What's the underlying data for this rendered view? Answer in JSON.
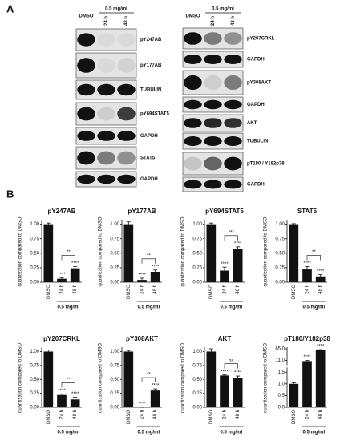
{
  "panel_a": {
    "label": "A",
    "left": {
      "dmso": "DMSO",
      "dose": "0.5 mg/ml",
      "times": [
        "24 h",
        "48 h"
      ],
      "blots": [
        "pY247AB",
        "pY177AB",
        "TUBULIN",
        "pY694STAT5",
        "GAPDH",
        "STAT5",
        "GAPDH"
      ]
    },
    "right": {
      "dmso": "DMSO",
      "dose": "0.5 mg/ml",
      "times": [
        "24 h",
        "48 h"
      ],
      "blots": [
        "pY207CRKL",
        "GAPDH",
        "pY308AKT",
        "GAPDH",
        "AKT",
        "TUBULIN",
        "pT180 / Y182p38",
        "GAPDH"
      ]
    }
  },
  "panel_b": {
    "label": "B"
  },
  "chart_data": [
    {
      "type": "bar",
      "title": "pY247AB",
      "y_label": "quantization compared to DMSO",
      "categories": [
        "DMSO",
        "24 h",
        "48 h"
      ],
      "values": [
        1.0,
        0.06,
        0.24
      ],
      "errors": [
        0.02,
        0.02,
        0.03
      ],
      "color": "#111111",
      "ylim": [
        0,
        1.05
      ],
      "yticks": [
        {
          "value": 0,
          "label": "0.00"
        },
        0.25,
        {
          "value": 0.5,
          "label": "0.50"
        },
        0.75,
        {
          "value": 1,
          "label": "1.00"
        }
      ],
      "annotations": [
        null,
        "****",
        "****"
      ],
      "bracket": "**",
      "group_label": "0.5 mg/ml"
    },
    {
      "type": "bar",
      "title": "pY177AB",
      "y_label": "quantization compared to DMSO",
      "categories": [
        "DMSO",
        "24 h",
        "48 h"
      ],
      "values": [
        1.0,
        0.04,
        0.18
      ],
      "errors": [
        0.04,
        0.03,
        0.03
      ],
      "color": "#111111",
      "ylim": [
        0,
        1.05
      ],
      "yticks": [
        {
          "value": 0,
          "label": "0.00"
        },
        0.25,
        {
          "value": 0.5,
          "label": "0.50"
        },
        0.75,
        {
          "value": 1,
          "label": "1.00"
        }
      ],
      "annotations": [
        null,
        "****",
        "****"
      ],
      "bracket": "**",
      "group_label": "0.5 mg/ml"
    },
    {
      "type": "bar",
      "title": "pY694STAT5",
      "y_label": "quantization compared to DMSO",
      "categories": [
        "DMSO",
        "24 h",
        "48 h"
      ],
      "values": [
        1.0,
        0.2,
        0.57
      ],
      "errors": [
        0.02,
        0.06,
        0.04
      ],
      "color": "#111111",
      "ylim": [
        0,
        1.05
      ],
      "yticks": [
        {
          "value": 0,
          "label": "0.00"
        },
        0.25,
        {
          "value": 0.5,
          "label": "0.50"
        },
        0.75,
        {
          "value": 1,
          "label": "1.00"
        }
      ],
      "annotations": [
        null,
        "****",
        "****"
      ],
      "bracket": "***",
      "group_label": "0.5 mg/ml"
    },
    {
      "type": "bar",
      "title": "STAT5",
      "y_label": "quantization compared to DMSO",
      "categories": [
        "DMSO",
        "24 h",
        "48 h"
      ],
      "values": [
        1.0,
        0.22,
        0.1
      ],
      "errors": [
        0.01,
        0.05,
        0.03
      ],
      "color": "#111111",
      "ylim": [
        0,
        1.05
      ],
      "yticks": [
        {
          "value": 0,
          "label": "0.00"
        },
        0.25,
        {
          "value": 0.5,
          "label": "0.50"
        },
        0.75,
        {
          "value": 1,
          "label": "1.00"
        }
      ],
      "annotations": [
        null,
        "****",
        "****"
      ],
      "bracket": "**",
      "group_label": "0.5 mg/ml"
    },
    {
      "type": "bar",
      "title": "pY207CRKL",
      "y_label": "quantization compared to DMSO",
      "categories": [
        "DMSO",
        "24 h",
        "48 h"
      ],
      "values": [
        1.0,
        0.22,
        0.14
      ],
      "errors": [
        0.03,
        0.02,
        0.04
      ],
      "color": "#111111",
      "ylim": [
        0,
        1.05
      ],
      "yticks": [
        {
          "value": 0,
          "label": "0.00"
        },
        0.25,
        {
          "value": 0.5,
          "label": "0.50"
        },
        0.75,
        {
          "value": 1,
          "label": "1.00"
        }
      ],
      "annotations": [
        null,
        "****",
        "****"
      ],
      "bracket": "**",
      "group_label": "0.5 mg/ml"
    },
    {
      "type": "bar",
      "title": "pY308AKT",
      "y_label": "quantization compared to DMSO",
      "categories": [
        "DMSO",
        "24 h",
        "48 h"
      ],
      "values": [
        1.0,
        0.0,
        0.3
      ],
      "errors": [
        0.02,
        0.0,
        0.03
      ],
      "color": "#111111",
      "ylim": [
        0,
        1.05
      ],
      "yticks": [
        {
          "value": 0,
          "label": "0.00"
        },
        0.25,
        {
          "value": 0.5,
          "label": "0.50"
        },
        0.75,
        {
          "value": 1,
          "label": "1.00"
        }
      ],
      "annotations": [
        null,
        "****",
        "****"
      ],
      "bracket": "**",
      "group_label": "0.5 mg/ml"
    },
    {
      "type": "bar",
      "title": "AKT",
      "y_label": "quantization compared to DMSO",
      "categories": [
        "DMSO",
        "24 h",
        "48 h"
      ],
      "values": [
        1.0,
        0.57,
        0.52
      ],
      "errors": [
        0.05,
        0.01,
        0.04
      ],
      "color": "#111111",
      "ylim": [
        0,
        1.05
      ],
      "yticks": [
        {
          "value": 0,
          "label": "0.00"
        },
        0.25,
        {
          "value": 0.5,
          "label": "0.50"
        },
        0.75,
        {
          "value": 1,
          "label": "1.00"
        }
      ],
      "annotations": [
        null,
        "****",
        "****"
      ],
      "bracket": "ns",
      "group_label": "0.5 mg/ml"
    },
    {
      "type": "bar",
      "title": "pT180/Y182p38",
      "y_label": "quantization compared to DMSO",
      "categories": [
        "DMSO",
        "24 h",
        "48 h"
      ],
      "values": [
        1.0,
        10.5,
        58
      ],
      "errors": [
        0.05,
        0.8,
        3
      ],
      "color": "#111111",
      "ylim": [
        0,
        65
      ],
      "yscale": "broken",
      "yticks": [
        {
          "value": 0,
          "label": "0.0"
        },
        0.5,
        {
          "value": 1,
          "label": "1.0"
        },
        1.5,
        {
          "value": 11,
          "label": "11.0"
        },
        {
          "value": 65,
          "label": "65.0"
        }
      ],
      "annotations": [
        null,
        "****",
        "****"
      ],
      "group_label": "0.5 mg/ml"
    }
  ]
}
